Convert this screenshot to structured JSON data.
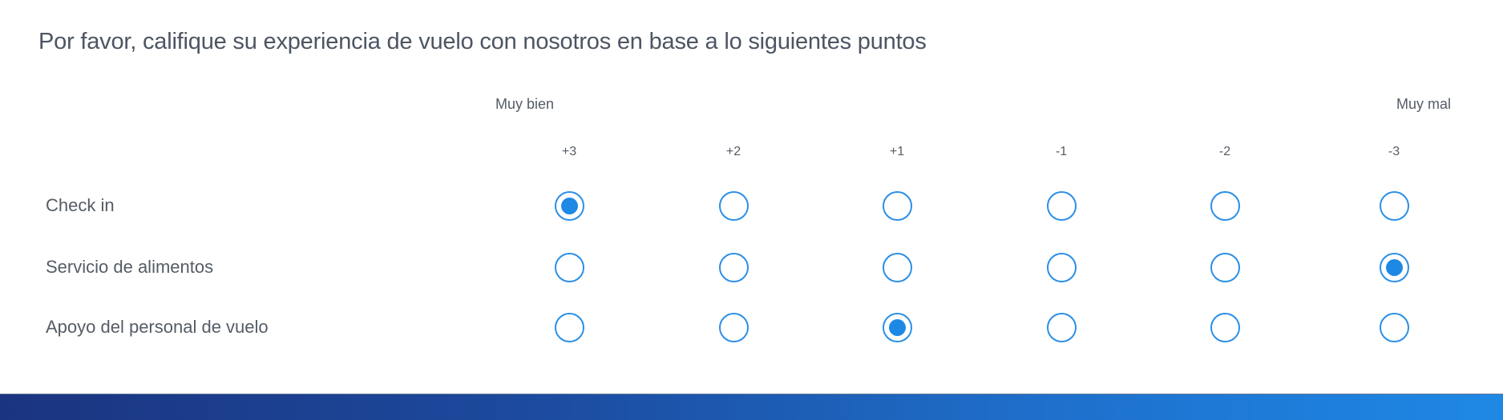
{
  "question": "Por favor, califique su experiencia de vuelo con nosotros en base a lo siguientes puntos",
  "scale": {
    "left_label": "Muy bien",
    "right_label": "Muy mal",
    "options": [
      "+3",
      "+2",
      "+1",
      "-1",
      "-2",
      "-3"
    ]
  },
  "rows": [
    {
      "label": "Check in",
      "selected": "+3"
    },
    {
      "label": "Servicio de alimentos",
      "selected": "-3"
    },
    {
      "label": "Apoyo del personal de vuelo",
      "selected": "+1"
    }
  ],
  "colors": {
    "accent": "#1e88e5",
    "bar_start": "#1b3480",
    "bar_end": "#1e88e5"
  }
}
